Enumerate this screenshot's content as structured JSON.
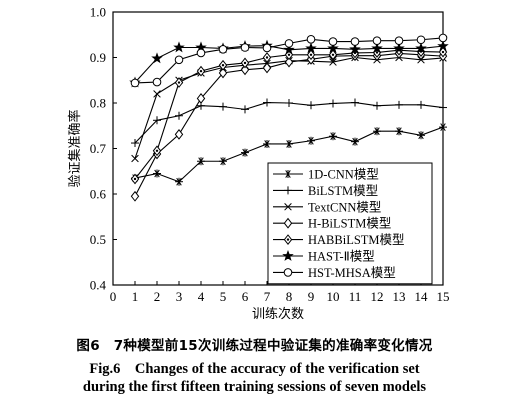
{
  "chart_data": {
    "type": "line",
    "xlabel": "训练次数",
    "ylabel": "验证集准确率",
    "xlim": [
      0,
      15
    ],
    "ylim": [
      0.4,
      1.0
    ],
    "xticks": [
      0,
      1,
      2,
      3,
      4,
      5,
      6,
      7,
      8,
      9,
      10,
      11,
      12,
      13,
      14,
      15
    ],
    "yticks": [
      0.4,
      0.5,
      0.6,
      0.7,
      0.8,
      0.9,
      1.0
    ],
    "grid": false,
    "legend_position": "bottom-right",
    "x": [
      1,
      2,
      3,
      4,
      5,
      6,
      7,
      8,
      9,
      10,
      11,
      12,
      13,
      14,
      15
    ],
    "series": [
      {
        "name": "1D-CNN模型",
        "marker": "asterisk",
        "values": [
          0.635,
          0.645,
          0.627,
          0.672,
          0.672,
          0.691,
          0.71,
          0.71,
          0.717,
          0.727,
          0.715,
          0.738,
          0.738,
          0.729,
          0.747
        ]
      },
      {
        "name": "BiLSTM模型",
        "marker": "plus",
        "values": [
          0.712,
          0.762,
          0.772,
          0.794,
          0.792,
          0.786,
          0.801,
          0.8,
          0.795,
          0.799,
          0.801,
          0.794,
          0.796,
          0.796,
          0.79
        ]
      },
      {
        "name": "TextCNN模型",
        "marker": "cross",
        "values": [
          0.678,
          0.82,
          0.85,
          0.866,
          0.878,
          0.883,
          0.887,
          0.893,
          0.892,
          0.89,
          0.9,
          0.895,
          0.9,
          0.895,
          0.899
        ]
      },
      {
        "name": "H-BiLSTM模型",
        "marker": "diamond",
        "values": [
          0.595,
          0.688,
          0.731,
          0.81,
          0.866,
          0.873,
          0.877,
          0.89,
          0.896,
          0.903,
          0.904,
          0.904,
          0.909,
          0.906,
          0.903
        ]
      },
      {
        "name": "HABBiLSTM模型",
        "marker": "diamond-dot",
        "values": [
          0.633,
          0.695,
          0.845,
          0.87,
          0.883,
          0.888,
          0.9,
          0.906,
          0.906,
          0.906,
          0.91,
          0.911,
          0.916,
          0.913,
          0.912
        ]
      },
      {
        "name": "HAST-Ⅱ模型",
        "marker": "star",
        "values": [
          0.845,
          0.898,
          0.922,
          0.922,
          0.92,
          0.925,
          0.926,
          0.917,
          0.92,
          0.92,
          0.918,
          0.92,
          0.92,
          0.92,
          0.925
        ]
      },
      {
        "name": "HST-MHSA模型",
        "marker": "circle",
        "values": [
          0.844,
          0.846,
          0.895,
          0.91,
          0.918,
          0.922,
          0.921,
          0.931,
          0.94,
          0.935,
          0.935,
          0.937,
          0.937,
          0.939,
          0.943
        ]
      }
    ]
  },
  "captions": {
    "cn": "图6　7种模型前15次训练过程中验证集的准确率变化情况",
    "en_line1": "Fig.6　Changes of the accuracy of the verification set",
    "en_line2": "during the first fifteen training sessions of seven models"
  }
}
